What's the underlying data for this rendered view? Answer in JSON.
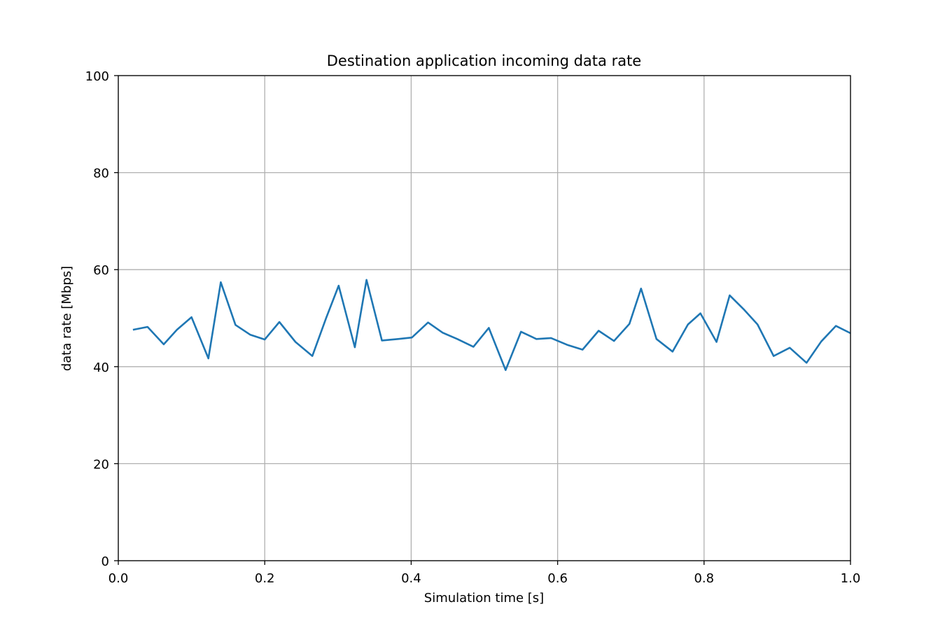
{
  "chart_data": {
    "type": "line",
    "title": "Destination application incoming data rate",
    "xlabel": "Simulation time [s]",
    "ylabel": "data rate [Mbps]",
    "xlim": [
      0.0,
      1.0
    ],
    "ylim": [
      0,
      100
    ],
    "xticks": [
      0.0,
      0.2,
      0.4,
      0.6,
      0.8,
      1.0
    ],
    "xtick_labels": [
      "0.0",
      "0.2",
      "0.4",
      "0.6",
      "0.8",
      "1.0"
    ],
    "yticks": [
      0,
      20,
      40,
      60,
      80,
      100
    ],
    "ytick_labels": [
      "0",
      "20",
      "40",
      "60",
      "80",
      "100"
    ],
    "grid": true,
    "series": [
      {
        "color": "#1f77b4",
        "x": [
          0.02,
          0.04,
          0.062,
          0.08,
          0.1,
          0.123,
          0.14,
          0.16,
          0.18,
          0.2,
          0.22,
          0.242,
          0.265,
          0.284,
          0.301,
          0.323,
          0.339,
          0.36,
          0.382,
          0.401,
          0.423,
          0.443,
          0.463,
          0.485,
          0.506,
          0.529,
          0.55,
          0.571,
          0.591,
          0.613,
          0.634,
          0.656,
          0.677,
          0.698,
          0.714,
          0.735,
          0.757,
          0.778,
          0.795,
          0.817,
          0.835,
          0.855,
          0.873,
          0.895,
          0.917,
          0.94,
          0.96,
          0.98,
          1.0
        ],
        "y": [
          47.6,
          48.2,
          44.6,
          47.6,
          50.2,
          41.7,
          57.4,
          48.6,
          46.6,
          45.6,
          49.2,
          45.1,
          42.2,
          50.1,
          56.7,
          44.0,
          57.9,
          45.4,
          45.7,
          46.0,
          49.1,
          47.0,
          45.7,
          44.1,
          48.0,
          39.3,
          47.2,
          45.7,
          45.9,
          44.5,
          43.5,
          47.4,
          45.3,
          48.8,
          56.1,
          45.7,
          43.1,
          48.7,
          51.0,
          45.1,
          54.7,
          51.7,
          48.7,
          42.2,
          43.9,
          40.8,
          45.2,
          48.4,
          46.9
        ]
      }
    ]
  }
}
